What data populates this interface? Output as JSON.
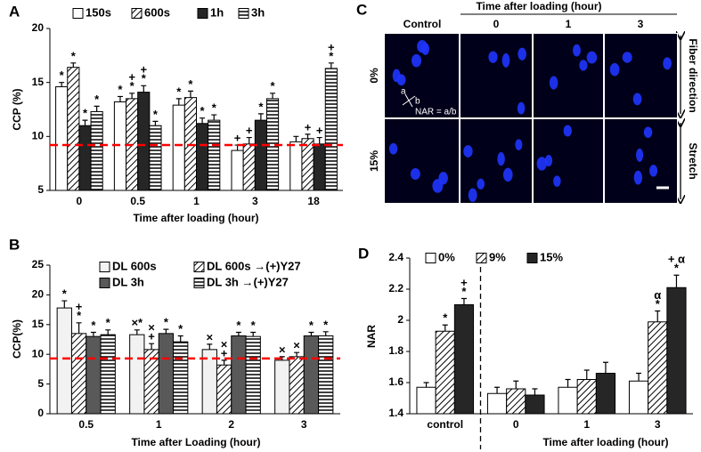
{
  "chart_data": [
    {
      "type": "bar",
      "label": "A",
      "y_label": "CCP (%)",
      "x_label": "Time after loading (hour)",
      "categories": [
        "0",
        "0.5",
        "1",
        "3",
        "18"
      ],
      "ylim": [
        5,
        20
      ],
      "yticks": [
        5,
        10,
        15,
        20
      ],
      "reference_line": 9.2,
      "reference_color": "#ff0000",
      "series": [
        {
          "name": "150s",
          "color": "#ffffff",
          "pattern": "none",
          "values": [
            14.6,
            13.2,
            12.9,
            8.7,
            9.5
          ],
          "errors": [
            0.4,
            0.5,
            0.6,
            0.5,
            0.5
          ],
          "annotations": [
            [
              "*"
            ],
            [
              "*"
            ],
            [
              "*"
            ],
            [
              "+"
            ],
            []
          ]
        },
        {
          "name": "600s",
          "color": "#000000",
          "pattern": "diagonal",
          "values": [
            16.4,
            13.5,
            13.6,
            9.3,
            9.8
          ],
          "errors": [
            0.4,
            0.5,
            0.6,
            0.6,
            0.4
          ],
          "annotations": [
            [
              "*"
            ],
            [
              "+",
              "*"
            ],
            [
              "*"
            ],
            [
              "+"
            ],
            [
              "+"
            ]
          ]
        },
        {
          "name": "1h",
          "color": "#262626",
          "pattern": "none",
          "values": [
            11.0,
            14.1,
            11.2,
            11.5,
            9.3
          ],
          "errors": [
            0.5,
            0.6,
            0.5,
            0.6,
            0.6
          ],
          "annotations": [
            [
              "*"
            ],
            [
              "+",
              "*"
            ],
            [
              "*"
            ],
            [
              "*"
            ],
            [
              "+"
            ]
          ]
        },
        {
          "name": "3h",
          "color": "#000000",
          "pattern": "horizontal",
          "values": [
            12.3,
            11.0,
            11.5,
            13.5,
            16.3
          ],
          "errors": [
            0.5,
            0.4,
            0.5,
            0.5,
            0.5
          ],
          "annotations": [
            [
              "*"
            ],
            [
              "*"
            ],
            [
              "*"
            ],
            [
              "*"
            ],
            [
              "+",
              "*"
            ]
          ]
        }
      ]
    },
    {
      "type": "bar",
      "label": "B",
      "y_label": "CCP(%)",
      "x_label": "Time after Loading (hour)",
      "categories": [
        "0.5",
        "1",
        "2",
        "3"
      ],
      "ylim": [
        0,
        25
      ],
      "yticks": [
        0,
        5,
        10,
        15,
        20,
        25
      ],
      "reference_line": 9.3,
      "reference_color": "#ff0000",
      "series": [
        {
          "name": "DL 600s",
          "color": "#f2f2f2",
          "pattern": "none",
          "values": [
            17.8,
            13.3,
            10.8,
            9.0
          ],
          "errors": [
            1.2,
            0.8,
            0.9,
            0.6
          ],
          "annotations": [
            [
              "*"
            ],
            [
              "×*"
            ],
            [
              "×"
            ],
            [
              "×"
            ]
          ]
        },
        {
          "name": "DL 600s →(+)Y27",
          "color": "#000000",
          "pattern": "diagonal",
          "values": [
            13.5,
            10.8,
            8.2,
            9.6
          ],
          "errors": [
            1.8,
            1.0,
            0.8,
            0.7
          ],
          "annotations": [
            [
              "+",
              "*"
            ],
            [
              "×",
              "+"
            ],
            [
              "×",
              "+"
            ],
            [
              "×"
            ]
          ]
        },
        {
          "name": "DL 3h",
          "color": "#595959",
          "pattern": "none",
          "values": [
            13.0,
            13.5,
            13.1,
            13.1
          ],
          "errors": [
            0.7,
            0.7,
            0.6,
            0.6
          ],
          "annotations": [
            [
              "*"
            ],
            [
              "*"
            ],
            [
              "*"
            ],
            [
              "*"
            ]
          ]
        },
        {
          "name": "DL 3h →(+)Y27",
          "color": "#000000",
          "pattern": "horizontal",
          "values": [
            13.3,
            12.1,
            13.0,
            13.1
          ],
          "errors": [
            0.8,
            1.0,
            0.7,
            0.7
          ],
          "annotations": [
            [
              "*"
            ],
            [
              "*"
            ],
            [
              "*"
            ],
            [
              "*"
            ]
          ]
        }
      ]
    },
    {
      "type": "bar",
      "label": "D",
      "y_label": "NAR",
      "x_label": "Time after loading (hour)",
      "categories": [
        "control",
        "0",
        "1",
        "3"
      ],
      "divider": "dashed",
      "ylim": [
        1.4,
        2.4
      ],
      "yticks": [
        1.4,
        1.6,
        1.8,
        2,
        2.2,
        2.4
      ],
      "series": [
        {
          "name": "0%",
          "color": "#ffffff",
          "pattern": "none",
          "values": [
            1.57,
            1.53,
            1.57,
            1.61
          ],
          "errors": [
            0.03,
            0.04,
            0.05,
            0.05
          ],
          "annotations": [
            [],
            [],
            [],
            []
          ]
        },
        {
          "name": "9%",
          "color": "#000000",
          "pattern": "diagonal",
          "values": [
            1.93,
            1.56,
            1.62,
            1.99
          ],
          "errors": [
            0.04,
            0.05,
            0.06,
            0.07
          ],
          "annotations": [
            [
              "*"
            ],
            [],
            [],
            [
              "α",
              "*"
            ]
          ]
        },
        {
          "name": "15%",
          "color": "#262626",
          "pattern": "none",
          "values": [
            2.1,
            1.52,
            1.66,
            2.21
          ],
          "errors": [
            0.04,
            0.04,
            0.07,
            0.08
          ],
          "annotations": [
            [
              "+",
              "*"
            ],
            [],
            [],
            [
              "+ α",
              "*"
            ]
          ]
        }
      ]
    }
  ],
  "image_panel": {
    "label": "C",
    "title": "Time after loading (hour)",
    "columns": [
      "Control",
      "0",
      "1",
      "3"
    ],
    "rows": [
      "0%",
      "15%"
    ],
    "side_labels": [
      "Fiber direction",
      "Stretch"
    ],
    "inset": [
      "a",
      "b",
      "NAR = a/b"
    ]
  }
}
